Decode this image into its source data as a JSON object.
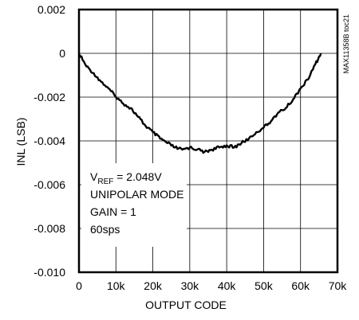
{
  "chart_data": {
    "type": "line",
    "xlabel": "OUTPUT CODE",
    "ylabel": "INL (LSB)",
    "xlim": [
      0,
      70000
    ],
    "ylim": [
      -0.01,
      0.002
    ],
    "x_ticks": [
      0,
      10000,
      20000,
      30000,
      40000,
      50000,
      60000,
      70000
    ],
    "x_tick_labels": [
      "0",
      "10k",
      "20k",
      "30k",
      "40k",
      "50k",
      "60k",
      "70k"
    ],
    "y_ticks": [
      0.002,
      0,
      -0.002,
      -0.004,
      -0.006,
      -0.008,
      -0.01
    ],
    "y_tick_labels": [
      "0.002",
      "0",
      "-0.002",
      "-0.004",
      "-0.006",
      "-0.008",
      "-0.010"
    ],
    "grid": true,
    "series": [
      {
        "x": [
          0,
          2000,
          4000,
          6000,
          8000,
          10000,
          12000,
          14000,
          16000,
          18000,
          20000,
          22000,
          24000,
          26000,
          28000,
          30000,
          32000,
          34000,
          36000,
          38000,
          40000,
          42000,
          44000,
          46000,
          48000,
          50000,
          52000,
          54000,
          56000,
          58000,
          60000,
          62000,
          64000,
          65535
        ],
        "y": [
          0.0,
          -0.0006,
          -0.0009,
          -0.0013,
          -0.0016,
          -0.002,
          -0.0023,
          -0.0025,
          -0.0029,
          -0.0033,
          -0.0036,
          -0.0039,
          -0.0041,
          -0.0043,
          -0.0044,
          -0.0043,
          -0.0044,
          -0.0045,
          -0.0044,
          -0.0043,
          -0.0042,
          -0.0043,
          -0.0041,
          -0.0039,
          -0.0036,
          -0.0034,
          -0.0031,
          -0.0027,
          -0.0025,
          -0.0021,
          -0.0016,
          -0.0012,
          -0.0005,
          0.0
        ]
      }
    ],
    "annotation": {
      "vref_prefix": "V",
      "vref_subscript": "REF",
      "vref_value": " = 2.048V",
      "lines": [
        "UNIPOLAR MODE",
        "GAIN = 1",
        "60sps"
      ]
    },
    "watermark": "MAX11358B toc21"
  }
}
